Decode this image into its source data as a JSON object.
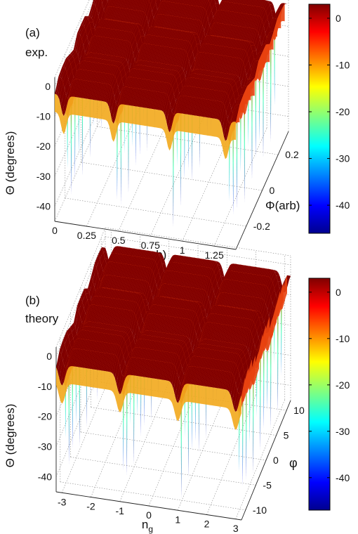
{
  "chart_data": [
    {
      "type": "surface",
      "panel_label": "(a)",
      "panel_sublabel": "exp.",
      "xlabel": "V",
      "xlabel_sub": "g",
      "xlabel_unit": " (arb)",
      "ylabel": "Φ(arb)",
      "zlabel": "Θ (degrees)",
      "x_ticks": [
        "0",
        "0.25",
        "0.5",
        "0.75",
        "1",
        "1.25"
      ],
      "x_tick_values": [
        0,
        0.25,
        0.5,
        0.75,
        1.0,
        1.25
      ],
      "xlim": [
        0,
        1.42
      ],
      "y_ticks": [
        "-0.2",
        "0",
        "0.2"
      ],
      "y_tick_values": [
        -0.2,
        0,
        0.2
      ],
      "ylim": [
        -0.33,
        0.33
      ],
      "z_ticks": [
        "0",
        "-10",
        "-20",
        "-30",
        "-40"
      ],
      "z_tick_values": [
        0,
        -10,
        -20,
        -30,
        -40
      ],
      "zlim": [
        -45,
        3
      ],
      "dip_x_positions": [
        0.07,
        0.46,
        0.9,
        1.34
      ],
      "plateau_value": 1,
      "minimum_value": -44,
      "colorbar": {
        "ticks": [
          "0",
          "-10",
          "-20",
          "-30",
          "-40"
        ],
        "values": [
          0,
          -10,
          -20,
          -30,
          -40
        ],
        "range": [
          -46,
          3
        ],
        "colormap": "jet"
      },
      "grid": true
    },
    {
      "type": "surface",
      "panel_label": "(b)",
      "panel_sublabel": "theory",
      "xlabel": "n",
      "xlabel_sub": "g",
      "xlabel_unit": "",
      "ylabel": "φ",
      "zlabel": "Θ (degrees)",
      "x_ticks": [
        "-3",
        "-2",
        "-1",
        "0",
        "1",
        "2",
        "3"
      ],
      "x_tick_values": [
        -3,
        -2,
        -1,
        0,
        1,
        2,
        3
      ],
      "xlim": [
        -3.2,
        3.2
      ],
      "y_ticks": [
        "-10",
        "-5",
        "0",
        "5",
        "10"
      ],
      "y_tick_values": [
        -10,
        -5,
        0,
        5,
        10
      ],
      "ylim": [
        -12,
        12
      ],
      "z_ticks": [
        "0",
        "-10",
        "-20",
        "-30",
        "-40"
      ],
      "z_tick_values": [
        0,
        -10,
        -20,
        -30,
        -40
      ],
      "zlim": [
        -45,
        3
      ],
      "dip_x_positions": [
        -3,
        -1,
        1,
        3
      ],
      "plateau_value": 1,
      "minimum_value": -44,
      "colorbar": {
        "ticks": [
          "0",
          "-10",
          "-20",
          "-30",
          "-40"
        ],
        "values": [
          0,
          -10,
          -20,
          -30,
          -40
        ],
        "range": [
          -47,
          3
        ],
        "colormap": "jet"
      },
      "grid": true
    }
  ]
}
